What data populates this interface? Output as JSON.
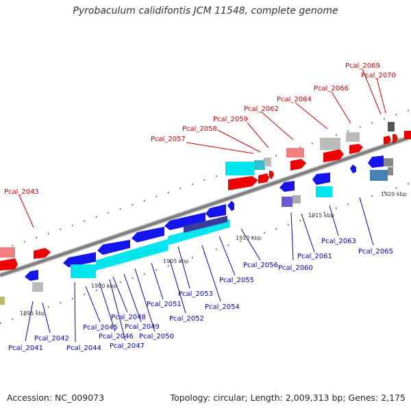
{
  "title": "Pyrobaculum calidifontis JCM 11548, complete genome",
  "footer": {
    "accession": "Accession: NC_009073",
    "topology": "Topology: circular; Length: 2,009,313 bp; Genes: 2,175"
  },
  "colors": {
    "backbone": "#8a8a8a",
    "red_labels": "#cc0000",
    "blue_labels": "#0000bb",
    "tick_dots": "#2e8b2e",
    "cds_plus": "#ff0000",
    "cds_minus": "#1414ee",
    "rna": "#00e5ee"
  },
  "tick_marks": [
    {
      "label": "1895 kbp",
      "bp": 1895000
    },
    {
      "label": "1900 kbp",
      "bp": 1900000
    },
    {
      "label": "1905 kbp",
      "bp": 1905000
    },
    {
      "label": "1910 kbp",
      "bp": 1910000
    },
    {
      "label": "1915 kbp",
      "bp": 1915000
    },
    {
      "label": "1920 kbp",
      "bp": 1920000
    }
  ],
  "upper_labels": [
    "Pcal_2043",
    "Pcal_2057",
    "Pcal_2058",
    "Pcal_2059",
    "Pcal_2062",
    "Pcal_2064",
    "Pcal_2066",
    "Pcal_2069",
    "Pcal_2070"
  ],
  "lower_labels": [
    "Pcal_2041",
    "Pcal_2042",
    "Pcal_2044",
    "Pcal_2045",
    "Pcal_2046",
    "Pcal_2047",
    "Pcal_2048",
    "Pcal_2049",
    "Pcal_2050",
    "Pcal_2051",
    "Pcal_2052",
    "Pcal_2053",
    "Pcal_2054",
    "Pcal_2055",
    "Pcal_2056",
    "Pcal_2060",
    "Pcal_2061",
    "Pcal_2063",
    "Pcal_2065"
  ]
}
